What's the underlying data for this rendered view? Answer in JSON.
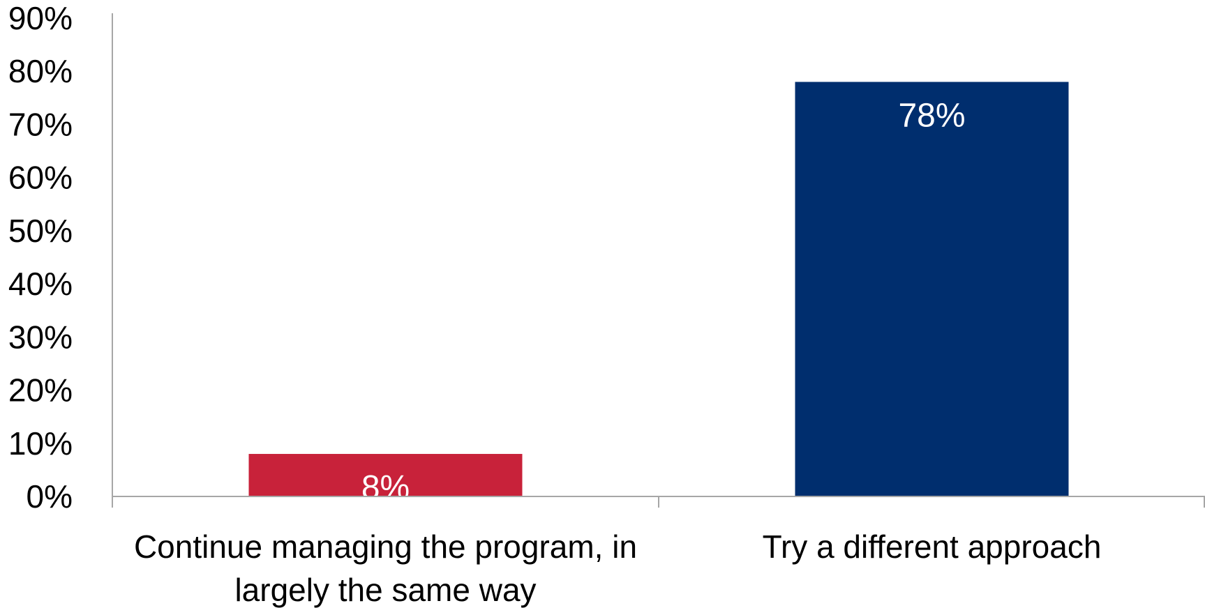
{
  "chart_data": {
    "type": "bar",
    "categories": [
      "Continue managing the program, in largely the same way",
      "Try a different approach"
    ],
    "category_lines": [
      [
        "Continue managing the program, in",
        "largely the same way"
      ],
      [
        "Try a different approach"
      ]
    ],
    "values": [
      8,
      78
    ],
    "data_labels": [
      "8%",
      "78%"
    ],
    "bar_colors": [
      "#c8223a",
      "#002e6e"
    ],
    "ylim": [
      0,
      90
    ],
    "y_ticks": [
      0,
      10,
      20,
      30,
      40,
      50,
      60,
      70,
      80,
      90
    ],
    "y_tick_labels": [
      "0%",
      "10%",
      "20%",
      "30%",
      "40%",
      "50%",
      "60%",
      "70%",
      "80%",
      "90%"
    ],
    "grid": false,
    "title": "",
    "xlabel": "",
    "ylabel": ""
  }
}
